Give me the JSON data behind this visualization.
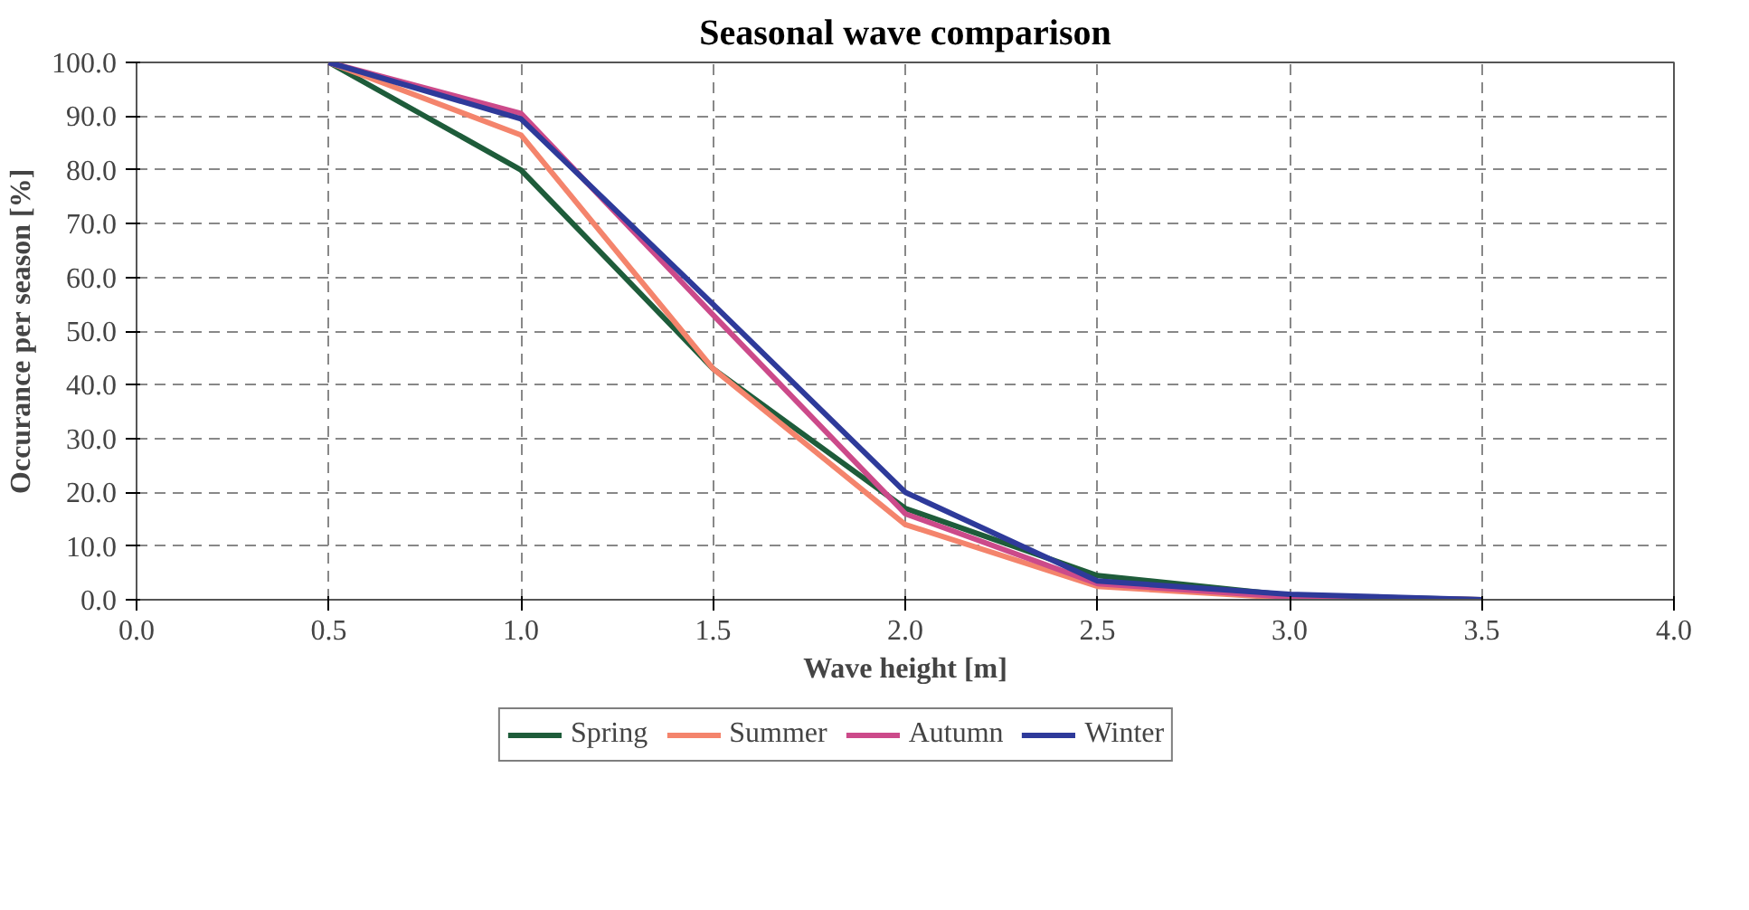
{
  "chart_data": {
    "type": "line",
    "title": "Seasonal wave comparison",
    "xlabel": "Wave height [m]",
    "ylabel": "Occurance per season [%]",
    "x": [
      0.5,
      1.0,
      1.5,
      2.0,
      2.5,
      3.0,
      3.5
    ],
    "series": [
      {
        "name": "Spring",
        "color": "#1e5c3a",
        "values": [
          100,
          80,
          43,
          17,
          4.5,
          0.8,
          0
        ]
      },
      {
        "name": "Summer",
        "color": "#f4846c",
        "values": [
          100,
          86.5,
          43,
          14,
          2.5,
          0.3,
          0
        ]
      },
      {
        "name": "Autumn",
        "color": "#cc4a8a",
        "values": [
          100,
          90.5,
          53,
          16,
          3,
          0.5,
          0
        ]
      },
      {
        "name": "Winter",
        "color": "#2e3a9a",
        "values": [
          100,
          89.5,
          55,
          20,
          3.5,
          1,
          0
        ]
      }
    ],
    "xlim": [
      0,
      4
    ],
    "ylim": [
      0,
      100
    ],
    "xticks": [
      {
        "value": 0,
        "label": "0.0"
      },
      {
        "value": 0.5,
        "label": "0.5"
      },
      {
        "value": 1,
        "label": "1.0"
      },
      {
        "value": 1.5,
        "label": "1.5"
      },
      {
        "value": 2,
        "label": "2.0"
      },
      {
        "value": 2.5,
        "label": "2.5"
      },
      {
        "value": 3,
        "label": "3.0"
      },
      {
        "value": 3.5,
        "label": "3.5"
      },
      {
        "value": 4,
        "label": "4.0"
      }
    ],
    "yticks": [
      {
        "value": 0,
        "label": "0.0"
      },
      {
        "value": 10,
        "label": "10.0"
      },
      {
        "value": 20,
        "label": "20.0"
      },
      {
        "value": 30,
        "label": "30.0"
      },
      {
        "value": 40,
        "label": "40.0"
      },
      {
        "value": 50,
        "label": "50.0"
      },
      {
        "value": 60,
        "label": "60.0"
      },
      {
        "value": 70,
        "label": "70.0"
      },
      {
        "value": 80,
        "label": "80.0"
      },
      {
        "value": 90,
        "label": "90.0"
      },
      {
        "value": 100,
        "label": "100.0"
      }
    ],
    "grid": true,
    "legend": "bottom",
    "marker": "none",
    "line_style": "solid"
  }
}
